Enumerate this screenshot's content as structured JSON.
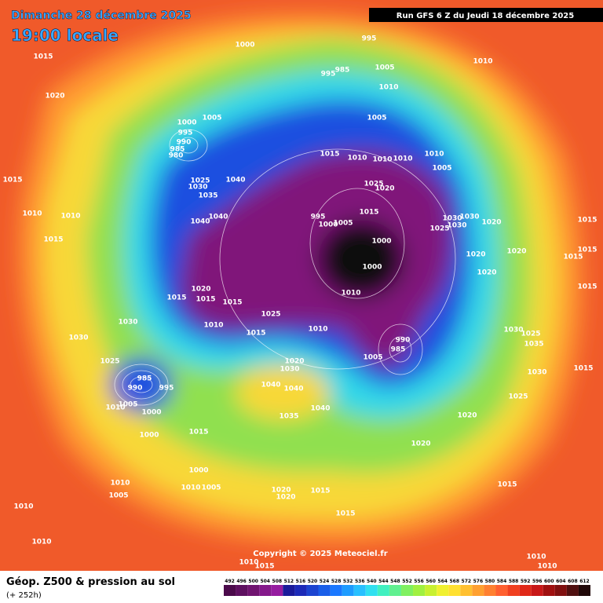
{
  "header": {
    "date": "Dimanche 28 décembre 2025",
    "time": "19:00 locale",
    "run": "Run GFS 6 Z du Jeudi 18 décembre 2025"
  },
  "footer": {
    "title": "Géop. Z500 & pression au sol",
    "lead": "(+ 252h)",
    "copyright": "Copyright © 2025 Meteociel.fr"
  },
  "legend": {
    "values": [
      492,
      496,
      500,
      504,
      508,
      512,
      516,
      520,
      524,
      528,
      532,
      536,
      540,
      544,
      548,
      552,
      556,
      560,
      564,
      568,
      572,
      576,
      580,
      584,
      588,
      592,
      596,
      600,
      604,
      608,
      612
    ],
    "colors": [
      "#4b0a4b",
      "#5e1060",
      "#701470",
      "#84188a",
      "#961ca0",
      "#1a1a9a",
      "#1c2ab8",
      "#1c44d0",
      "#1a5ee8",
      "#1a78ff",
      "#1e9cff",
      "#28c0ff",
      "#30e0f0",
      "#40f0c0",
      "#60f090",
      "#80f060",
      "#a0f040",
      "#c8f030",
      "#f0f030",
      "#ffe030",
      "#ffc030",
      "#ffa030",
      "#ff8030",
      "#ff6030",
      "#f04020",
      "#e02818",
      "#c81818",
      "#a01010",
      "#801010",
      "#501010",
      "#200808"
    ]
  },
  "labels": [
    "1015",
    "1020",
    "1000",
    "995",
    "995",
    "985",
    "1005",
    "1010",
    "1010",
    "1000",
    "1005",
    "995",
    "990",
    "985",
    "980",
    "1005",
    "1015",
    "1010",
    "1010",
    "1010",
    "1010",
    "1005",
    "1025",
    "1020",
    "1025",
    "1030",
    "1035",
    "1040",
    "1040",
    "1040",
    "1015",
    "1010",
    "1010",
    "1015",
    "995",
    "1000",
    "1005",
    "1015",
    "1000",
    "1000",
    "1010",
    "1030",
    "1030",
    "1025",
    "1030",
    "1020",
    "1020",
    "1020",
    "1020",
    "1015",
    "1015",
    "1015",
    "1015",
    "1020",
    "1015",
    "1015",
    "1015",
    "1010",
    "1025",
    "1015",
    "1010",
    "1030",
    "1030",
    "990",
    "985",
    "1005",
    "1020",
    "1030",
    "1040",
    "1040",
    "1025",
    "985",
    "990",
    "995",
    "1005",
    "1010",
    "1000",
    "1035",
    "1040",
    "1030",
    "1025",
    "1035",
    "1030",
    "1015",
    "1025",
    "1020",
    "1020",
    "1000",
    "1015",
    "1000",
    "1010",
    "1005",
    "1010",
    "1005",
    "1020",
    "1020",
    "1015",
    "1015",
    "1015",
    "1010",
    "1010",
    "1010",
    "1010",
    "1015",
    "1010"
  ]
}
